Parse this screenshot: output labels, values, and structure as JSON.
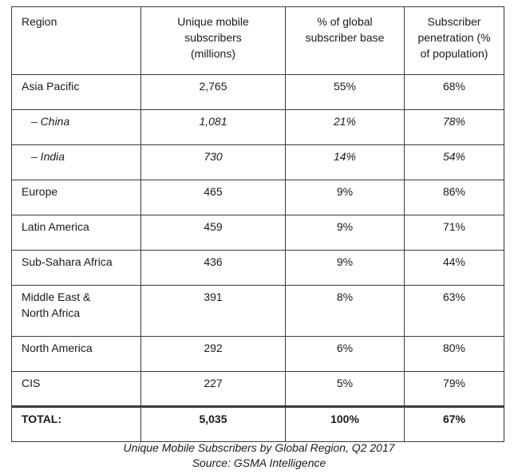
{
  "table": {
    "headers": [
      "Region",
      "Unique mobile subscribers (millions)",
      "% of global subscriber base",
      "Subscriber penetration (% of population)"
    ],
    "header_lines": {
      "col2": [
        "Unique mobile",
        "subscribers",
        "(millions)"
      ],
      "col3": [
        "% of global",
        "subscriber base"
      ],
      "col4": [
        "Subscriber",
        "penetration (%",
        "of population)"
      ]
    },
    "rows": [
      {
        "region": "Asia Pacific",
        "subscribers": "2,765",
        "share": "55%",
        "penetration": "68%"
      },
      {
        "region": "– China",
        "subscribers": "1,081",
        "share": "21%",
        "penetration": "78%"
      },
      {
        "region": "– India",
        "subscribers": "730",
        "share": "14%",
        "penetration": "54%"
      },
      {
        "region": "Europe",
        "subscribers": "465",
        "share": "9%",
        "penetration": "86%"
      },
      {
        "region": "Latin America",
        "subscribers": "459",
        "share": "9%",
        "penetration": "71%"
      },
      {
        "region": "Sub-Sahara Africa",
        "subscribers": "436",
        "share": "9%",
        "penetration": "44%"
      },
      {
        "region": "Middle East &",
        "region_line2": "North Africa",
        "subscribers": "391",
        "share": "8%",
        "penetration": "63%"
      },
      {
        "region": "North America",
        "subscribers": "292",
        "share": "6%",
        "penetration": "80%"
      },
      {
        "region": "CIS",
        "subscribers": "227",
        "share": "5%",
        "penetration": "79%"
      }
    ],
    "total": {
      "region": "TOTAL:",
      "subscribers": "5,035",
      "share": "100%",
      "penetration": "67%"
    }
  },
  "caption": {
    "title": "Unique Mobile Subscribers by Global Region, Q2 2017",
    "source": "Source: GSMA Intelligence"
  }
}
